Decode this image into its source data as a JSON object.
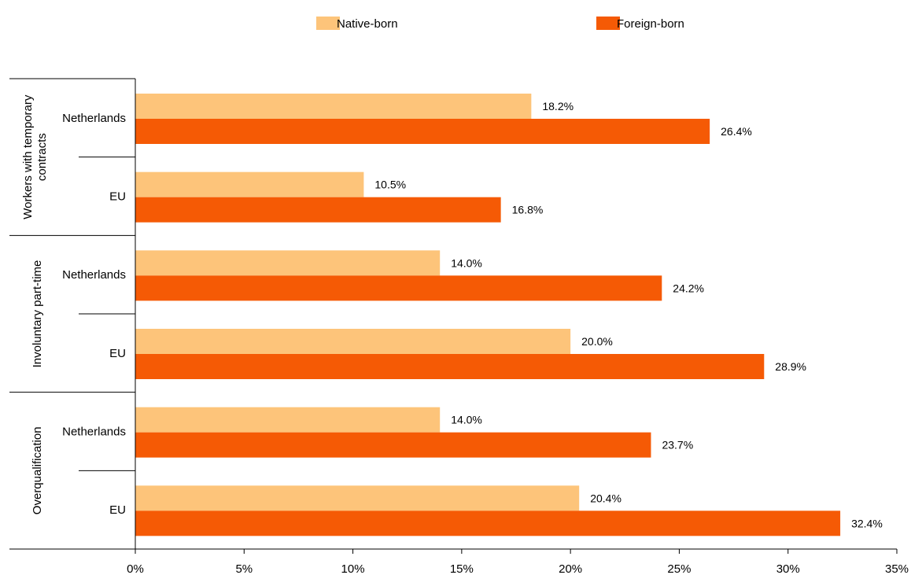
{
  "chart_data": {
    "type": "bar",
    "orientation": "horizontal",
    "grid": false,
    "legend_position": "top",
    "xlim": [
      0,
      35
    ],
    "x_ticks": [
      "0%",
      "5%",
      "10%",
      "15%",
      "20%",
      "25%",
      "30%",
      "35%"
    ],
    "x_tick_values": [
      0,
      5,
      10,
      15,
      20,
      25,
      30,
      35
    ],
    "groups": [
      {
        "label": "Workers with temporary contracts",
        "categories": [
          "Netherlands",
          "EU"
        ]
      },
      {
        "label": "Involuntary part-time",
        "categories": [
          "Netherlands",
          "EU"
        ]
      },
      {
        "label": "Overqualification",
        "categories": [
          "Netherlands",
          "EU"
        ]
      }
    ],
    "series": [
      {
        "name": "Native-born",
        "color": "#FDC47A",
        "values": [
          18.2,
          10.5,
          14.0,
          20.0,
          14.0,
          20.4
        ],
        "labels": [
          "18.2%",
          "10.5%",
          "14.0%",
          "20.0%",
          "14.0%",
          "20.4%"
        ]
      },
      {
        "name": "Foreign-born",
        "color": "#F55A05",
        "values": [
          26.4,
          16.8,
          24.2,
          28.9,
          23.7,
          32.4
        ],
        "labels": [
          "26.4%",
          "16.8%",
          "24.2%",
          "28.9%",
          "23.7%",
          "32.4%"
        ]
      }
    ]
  }
}
